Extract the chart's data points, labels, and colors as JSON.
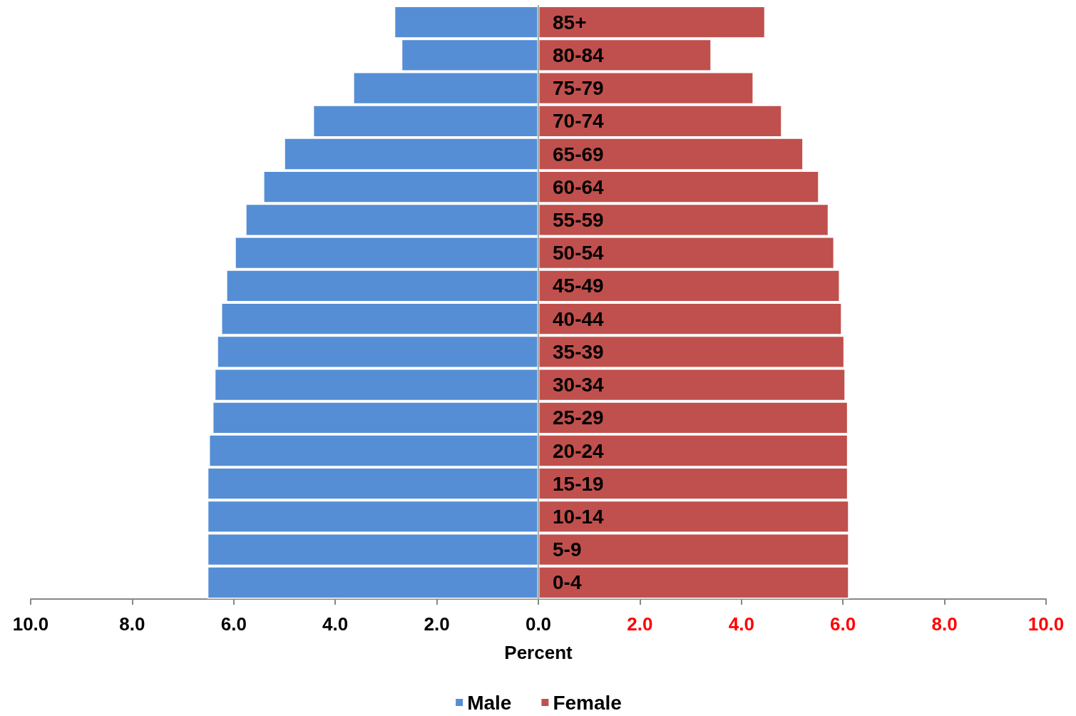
{
  "chart_data": {
    "type": "bar",
    "orientation": "horizontal",
    "xlabel": "Percent",
    "categories": [
      "85+",
      "80-84",
      "75-79",
      "70-74",
      "65-69",
      "60-64",
      "55-59",
      "50-54",
      "45-49",
      "40-44",
      "35-39",
      "30-34",
      "25-29",
      "20-24",
      "15-19",
      "10-14",
      "5-9",
      "0-4"
    ],
    "series": [
      {
        "name": "Male",
        "color": "#558ed5",
        "values": [
          -2.84,
          -2.7,
          -3.65,
          -4.44,
          -5.01,
          -5.42,
          -5.77,
          -5.98,
          -6.15,
          -6.25,
          -6.33,
          -6.38,
          -6.42,
          -6.49,
          -6.52,
          -6.52,
          -6.52,
          -6.52
        ]
      },
      {
        "name": "Female",
        "color": "#c0504d",
        "values": [
          4.47,
          3.41,
          4.24,
          4.8,
          5.22,
          5.53,
          5.72,
          5.83,
          5.94,
          5.98,
          6.03,
          6.05,
          6.1,
          6.1,
          6.1,
          6.12,
          6.12,
          6.12
        ]
      }
    ],
    "xlim": [
      -10,
      10
    ],
    "xticks": [
      {
        "value": -10,
        "label": "10.0"
      },
      {
        "value": -8,
        "label": "8.0"
      },
      {
        "value": -6,
        "label": "6.0"
      },
      {
        "value": -4,
        "label": "4.0"
      },
      {
        "value": -2,
        "label": "2.0"
      },
      {
        "value": 0,
        "label": "0.0"
      },
      {
        "value": 2,
        "label": "2.0"
      },
      {
        "value": 4,
        "label": "4.0"
      },
      {
        "value": 6,
        "label": "6.0"
      },
      {
        "value": 8,
        "label": "8.0"
      },
      {
        "value": 10,
        "label": "10.0"
      }
    ],
    "stacked": true,
    "grid": false,
    "legend": "bottom"
  }
}
